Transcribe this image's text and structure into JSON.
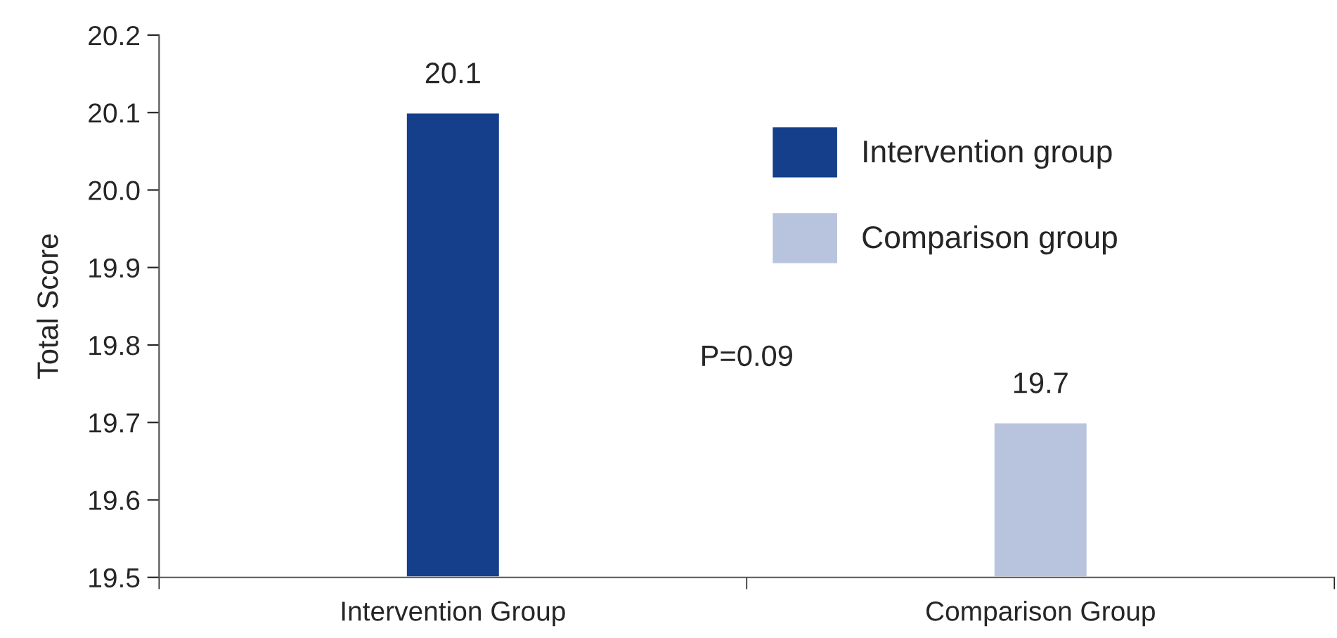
{
  "chart_data": {
    "type": "bar",
    "ylabel": "Total Score",
    "categories": [
      "Intervention Group",
      "Comparison Group"
    ],
    "series": [
      {
        "name": "Intervention group",
        "color": "#163f8b",
        "values": [
          20.1,
          null
        ]
      },
      {
        "name": "Comparison group",
        "color": "#b8c4de",
        "values": [
          null,
          19.7
        ]
      }
    ],
    "ylim": [
      19.5,
      20.2
    ],
    "yticks": [
      19.5,
      19.6,
      19.7,
      19.8,
      19.9,
      {
        "value": 20.0,
        "label": "20.0"
      },
      20.1,
      20.2
    ],
    "data_labels": true,
    "annotations": [
      "P=0.09"
    ],
    "legend": "top right",
    "grid": false
  }
}
